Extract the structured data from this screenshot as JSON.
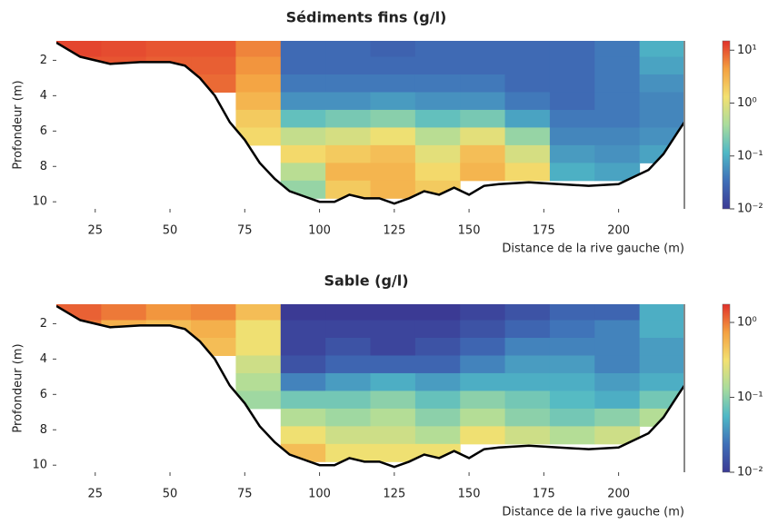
{
  "chart_data": [
    {
      "type": "heatmap",
      "title": "Sédiments fins (g/l)",
      "xlabel": "Distance de la rive gauche (m)",
      "ylabel": "Profondeur (m)",
      "xlim": [
        12,
        222
      ],
      "ylim": [
        0.9,
        10.4
      ],
      "xticks": [
        25,
        50,
        75,
        100,
        125,
        150,
        175,
        200
      ],
      "yticks": [
        2,
        4,
        6,
        8,
        10
      ],
      "x_edges": [
        12,
        27,
        42,
        57,
        72,
        87,
        102,
        117,
        132,
        147,
        162,
        177,
        192,
        207,
        222
      ],
      "y_edges": [
        0.8,
        1.8,
        2.8,
        3.8,
        4.8,
        5.8,
        6.8,
        7.8,
        8.8,
        9.8,
        10.5
      ],
      "values": [
        [
          12,
          11,
          10,
          10,
          6,
          0.03,
          0.03,
          0.025,
          0.03,
          0.03,
          0.03,
          0.03,
          0.04,
          0.1
        ],
        [
          10,
          10,
          9,
          9,
          5,
          0.03,
          0.03,
          0.03,
          0.03,
          0.03,
          0.03,
          0.03,
          0.04,
          0.08
        ],
        [
          null,
          null,
          null,
          8,
          4,
          0.04,
          0.04,
          0.04,
          0.04,
          0.04,
          0.03,
          0.03,
          0.04,
          0.06
        ],
        [
          null,
          null,
          null,
          null,
          3,
          0.06,
          0.06,
          0.07,
          0.06,
          0.06,
          0.04,
          0.03,
          0.04,
          0.05
        ],
        [
          null,
          null,
          null,
          null,
          2,
          0.15,
          0.2,
          0.25,
          0.15,
          0.2,
          0.08,
          0.04,
          0.04,
          0.05
        ],
        [
          null,
          null,
          null,
          null,
          1.5,
          0.6,
          0.8,
          1.2,
          0.5,
          1,
          0.3,
          0.05,
          0.05,
          0.06
        ],
        [
          null,
          null,
          null,
          null,
          null,
          1.5,
          2,
          2.5,
          1,
          2.5,
          0.8,
          0.07,
          0.06,
          0.08
        ],
        [
          null,
          null,
          null,
          null,
          null,
          0.5,
          3,
          3,
          1.5,
          3,
          1.5,
          0.1,
          0.08,
          null
        ],
        [
          null,
          null,
          null,
          null,
          null,
          0.3,
          2,
          3,
          2,
          null,
          null,
          null,
          null,
          null
        ],
        [
          null,
          null,
          null,
          null,
          null,
          null,
          null,
          null,
          null,
          null,
          null,
          null,
          null,
          null
        ]
      ],
      "colormap": [
        "#3b3a94",
        "#3f6fb8",
        "#4fb8c6",
        "#a9dc9c",
        "#f3e070",
        "#f4a040",
        "#e0302a"
      ],
      "colorbar": {
        "scale": "log",
        "lim": [
          0.01,
          15
        ],
        "ticks": [
          {
            "value": 10,
            "label": "10¹"
          },
          {
            "value": 1,
            "label": "10⁰"
          },
          {
            "value": 0.1,
            "label": "10⁻¹"
          },
          {
            "value": 0.01,
            "label": "10⁻²"
          }
        ]
      },
      "bed": {
        "color": "#000000",
        "x": [
          12,
          20,
          30,
          40,
          50,
          55,
          60,
          65,
          70,
          75,
          80,
          85,
          90,
          95,
          100,
          105,
          110,
          115,
          120,
          125,
          130,
          135,
          140,
          145,
          150,
          155,
          160,
          170,
          180,
          190,
          200,
          210,
          215,
          220,
          222
        ],
        "depth": [
          1.0,
          1.8,
          2.2,
          2.1,
          2.1,
          2.3,
          3.0,
          4.0,
          5.5,
          6.5,
          7.8,
          8.7,
          9.4,
          9.7,
          10.0,
          10.0,
          9.6,
          9.8,
          9.8,
          10.1,
          9.8,
          9.4,
          9.6,
          9.2,
          9.6,
          9.1,
          9.0,
          8.9,
          9.0,
          9.1,
          9.0,
          8.2,
          7.3,
          6.0,
          5.5
        ]
      }
    },
    {
      "type": "heatmap",
      "title": "Sable (g/l)",
      "xlabel": "Distance de la rive gauche (m)",
      "ylabel": "Profondeur (m)",
      "xlim": [
        12,
        222
      ],
      "ylim": [
        0.9,
        10.4
      ],
      "xticks": [
        25,
        50,
        75,
        100,
        125,
        150,
        175,
        200
      ],
      "yticks": [
        2,
        4,
        6,
        8,
        10
      ],
      "x_edges": [
        12,
        27,
        42,
        57,
        72,
        87,
        102,
        117,
        132,
        147,
        162,
        177,
        192,
        207,
        222
      ],
      "y_edges": [
        0.8,
        1.8,
        2.8,
        3.8,
        4.8,
        5.8,
        6.8,
        7.8,
        8.8,
        9.8,
        10.5
      ],
      "values": [
        [
          1.2,
          1,
          0.8,
          0.9,
          0.5,
          0.01,
          0.01,
          0.01,
          0.01,
          0.012,
          0.015,
          0.02,
          0.02,
          0.05
        ],
        [
          1,
          0.6,
          0.5,
          0.6,
          0.3,
          0.012,
          0.012,
          0.012,
          0.012,
          0.015,
          0.02,
          0.025,
          0.03,
          0.05
        ],
        [
          null,
          null,
          null,
          0.5,
          0.3,
          0.012,
          0.015,
          0.012,
          0.015,
          0.02,
          0.03,
          0.03,
          0.03,
          0.04
        ],
        [
          null,
          null,
          null,
          null,
          0.2,
          0.015,
          0.02,
          0.02,
          0.02,
          0.03,
          0.04,
          0.04,
          0.03,
          0.04
        ],
        [
          null,
          null,
          null,
          null,
          0.15,
          0.03,
          0.04,
          0.05,
          0.04,
          0.05,
          0.05,
          0.05,
          0.04,
          0.05
        ],
        [
          null,
          null,
          null,
          null,
          0.12,
          0.08,
          0.08,
          0.1,
          0.07,
          0.1,
          0.08,
          0.06,
          0.05,
          0.08
        ],
        [
          null,
          null,
          null,
          null,
          null,
          0.15,
          0.12,
          0.15,
          0.1,
          0.15,
          0.1,
          0.08,
          0.1,
          0.15
        ],
        [
          null,
          null,
          null,
          null,
          null,
          0.3,
          0.2,
          0.2,
          0.15,
          0.3,
          0.2,
          0.15,
          0.2,
          null
        ],
        [
          null,
          null,
          null,
          null,
          null,
          0.5,
          0.3,
          0.3,
          0.3,
          null,
          null,
          null,
          null,
          null
        ],
        [
          null,
          null,
          null,
          null,
          null,
          null,
          null,
          null,
          null,
          null,
          null,
          null,
          null,
          null
        ]
      ],
      "colormap": [
        "#3b3a94",
        "#3f6fb8",
        "#4fb8c6",
        "#a9dc9c",
        "#f3e070",
        "#f4a040",
        "#e0302a"
      ],
      "colorbar": {
        "scale": "log",
        "lim": [
          0.01,
          1.75
        ],
        "ticks": [
          {
            "value": 1,
            "label": "10⁰"
          },
          {
            "value": 0.1,
            "label": "10⁻¹"
          },
          {
            "value": 0.01,
            "label": "10⁻²"
          }
        ]
      },
      "bed": {
        "color": "#000000",
        "x": [
          12,
          20,
          30,
          40,
          50,
          55,
          60,
          65,
          70,
          75,
          80,
          85,
          90,
          95,
          100,
          105,
          110,
          115,
          120,
          125,
          130,
          135,
          140,
          145,
          150,
          155,
          160,
          170,
          180,
          190,
          200,
          210,
          215,
          220,
          222
        ],
        "depth": [
          1.0,
          1.8,
          2.2,
          2.1,
          2.1,
          2.3,
          3.0,
          4.0,
          5.5,
          6.5,
          7.8,
          8.7,
          9.4,
          9.7,
          10.0,
          10.0,
          9.6,
          9.8,
          9.8,
          10.1,
          9.8,
          9.4,
          9.6,
          9.2,
          9.6,
          9.1,
          9.0,
          8.9,
          9.0,
          9.1,
          9.0,
          8.2,
          7.3,
          6.0,
          5.5
        ]
      }
    }
  ]
}
